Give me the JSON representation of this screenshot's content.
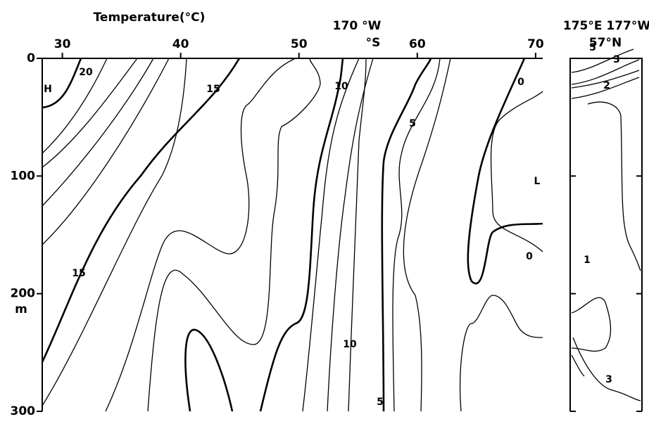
{
  "chart_data": {
    "type": "contour",
    "title": "Temperature(°C)",
    "annotations": [
      "170 °W",
      "°S"
    ],
    "y_label": "m",
    "xlim": [
      28.3,
      70.6
    ],
    "xticks": [
      30,
      40,
      50,
      60,
      70
    ],
    "ylim": [
      0,
      300
    ],
    "yticks": [
      0,
      100,
      200,
      300
    ],
    "contour_labels": [
      20,
      "H",
      15,
      10,
      0,
      5,
      "L",
      0,
      15,
      10,
      5
    ],
    "inset": {
      "annotations": [
        "175°E 177°W",
        "57°N"
      ],
      "contour_labels": [
        5,
        3,
        2,
        1,
        3
      ]
    }
  }
}
